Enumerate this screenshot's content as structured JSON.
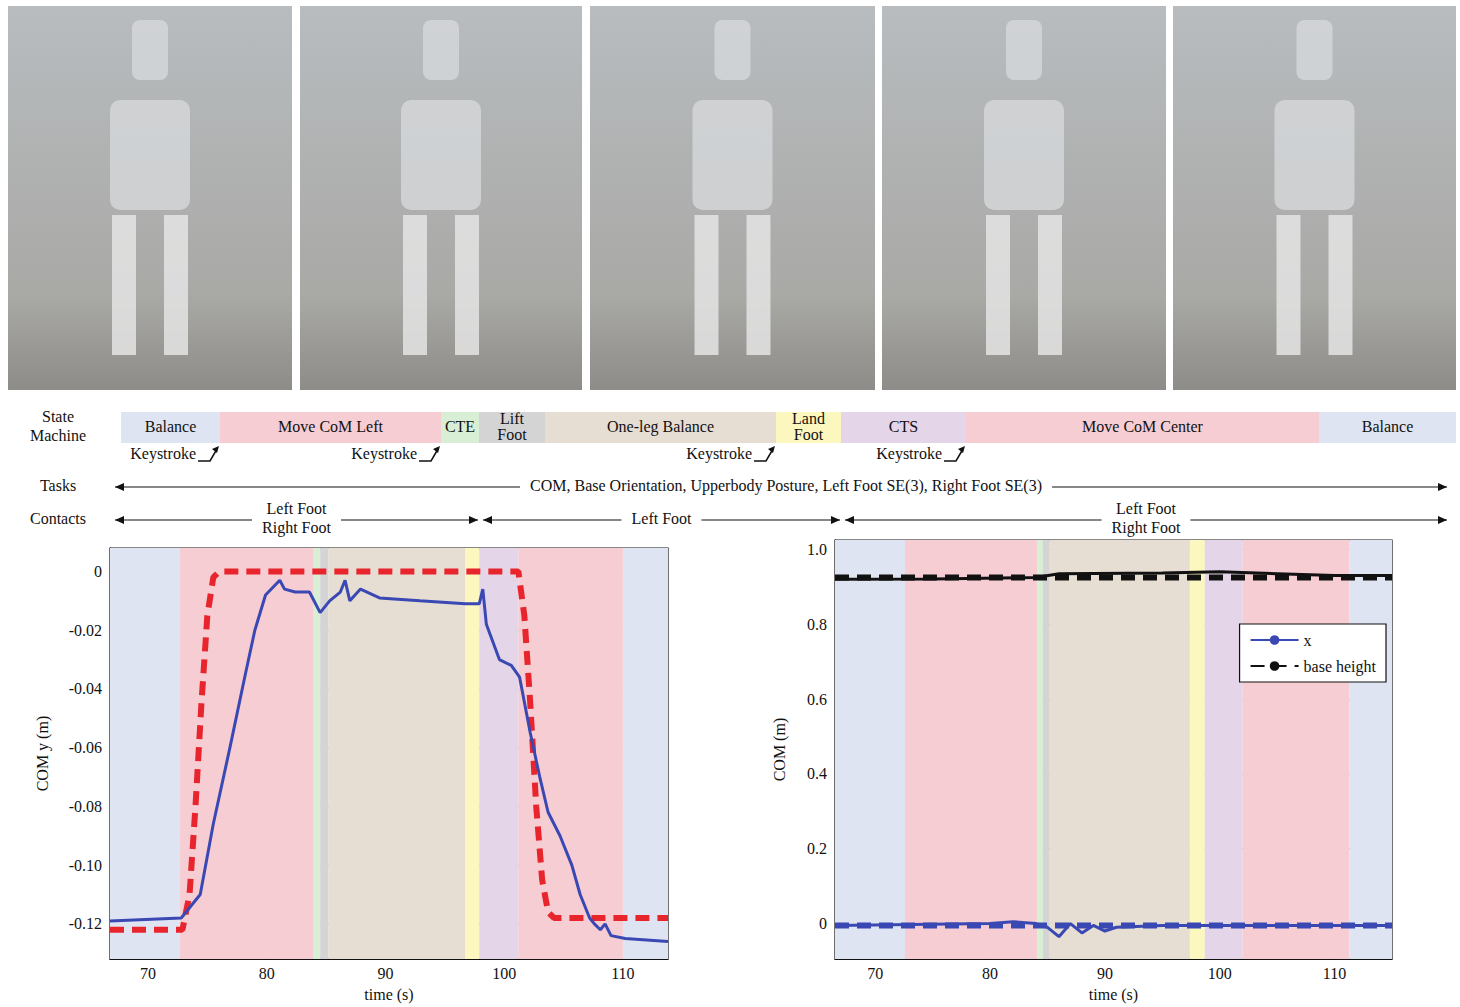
{
  "state_machine": {
    "label": "State Machine",
    "states": [
      {
        "label": "Balance",
        "color": "#dfe4f2"
      },
      {
        "label": "Move CoM Left",
        "color": "#f6cdd3"
      },
      {
        "label": "CTE",
        "color": "#d9efd5"
      },
      {
        "label": "Lift Foot",
        "color": "#d4d4d4"
      },
      {
        "label": "One-leg Balance",
        "color": "#e6ddd3"
      },
      {
        "label": "Land Foot",
        "color": "#fbf7bf"
      },
      {
        "label": "CTS",
        "color": "#e4d6e8"
      },
      {
        "label": "Move CoM Center",
        "color": "#f6cdd3"
      },
      {
        "label": "Balance",
        "color": "#dfe4f2"
      }
    ],
    "keystrokes": [
      "Keystroke",
      "Keystroke",
      "Keystroke",
      "Keystroke"
    ]
  },
  "tasks": {
    "label": "Tasks",
    "text": "COM, Base Orientation, Upperbody Posture, Left Foot SE(3), Right Foot SE(3)"
  },
  "contacts": {
    "label": "Contacts",
    "spans": [
      [
        "Left Foot",
        "Right Foot"
      ],
      [
        "Left Foot"
      ],
      [
        "Left Foot",
        "Right Foot"
      ]
    ]
  },
  "chart_data": [
    {
      "type": "line",
      "x_label": "time (s)",
      "y_label": "COM y (m)",
      "xlim": [
        66.8,
        113.8
      ],
      "xticks": [
        70,
        80,
        90,
        100,
        110
      ],
      "ylim": [
        -0.132,
        0.008
      ],
      "yticks": [
        -0.12,
        {
          "value": -0.1,
          "label": "-0.10"
        },
        -0.08,
        -0.06,
        -0.04,
        -0.02,
        0
      ],
      "grid": true,
      "phases": [
        {
          "start": 66.8,
          "end": 72.7,
          "color": "#dfe4f2"
        },
        {
          "start": 72.7,
          "end": 83.9,
          "color": "#f6cdd3"
        },
        {
          "start": 83.9,
          "end": 84.5,
          "color": "#d9efd5"
        },
        {
          "start": 84.5,
          "end": 85.2,
          "color": "#d4d4d4"
        },
        {
          "start": 85.2,
          "end": 96.7,
          "color": "#e6ddd3"
        },
        {
          "start": 96.7,
          "end": 97.9,
          "color": "#fbf7bf"
        },
        {
          "start": 97.9,
          "end": 101.2,
          "color": "#e4d6e8"
        },
        {
          "start": 101.2,
          "end": 110.0,
          "color": "#f6cdd3"
        },
        {
          "start": 110.0,
          "end": 113.8,
          "color": "#dfe4f2"
        }
      ],
      "series": [
        {
          "color": "#e8252d",
          "line_style": "dashed",
          "x": [
            66.8,
            72.9,
            73.5,
            74.0,
            74.5,
            75.0,
            75.5,
            76.0,
            101.2,
            101.7,
            102.2,
            102.7,
            103.2,
            103.7,
            104.2,
            113.8
          ],
          "values": [
            -0.122,
            -0.122,
            -0.11,
            -0.08,
            -0.045,
            -0.015,
            -0.002,
            0,
            0,
            -0.015,
            -0.045,
            -0.08,
            -0.105,
            -0.116,
            -0.118,
            -0.118
          ]
        },
        {
          "color": "#3a48b4",
          "line_style": "solid",
          "x": [
            66.8,
            72.8,
            74.4,
            75.5,
            76.9,
            78.2,
            79.0,
            79.9,
            81.1,
            81.5,
            82.4,
            83.6,
            84.5,
            85.3,
            86.2,
            86.6,
            87.0,
            87.9,
            89.5,
            92.9,
            96.7,
            97.9,
            98.2,
            98.5,
            99.6,
            100.6,
            101.3,
            102.2,
            103.0,
            103.7,
            104.7,
            105.7,
            106.4,
            107.2,
            107.6,
            108.1,
            108.5,
            109.0,
            110.2,
            113.8
          ],
          "values": [
            -0.119,
            -0.118,
            -0.11,
            -0.086,
            -0.06,
            -0.035,
            -0.02,
            -0.008,
            -0.003,
            -0.006,
            -0.007,
            -0.007,
            -0.014,
            -0.01,
            -0.007,
            -0.003,
            -0.01,
            -0.006,
            -0.009,
            -0.01,
            -0.011,
            -0.011,
            -0.006,
            -0.018,
            -0.03,
            -0.032,
            -0.036,
            -0.055,
            -0.07,
            -0.082,
            -0.09,
            -0.1,
            -0.11,
            -0.118,
            -0.12,
            -0.122,
            -0.12,
            -0.124,
            -0.125,
            -0.126
          ]
        }
      ]
    },
    {
      "type": "line",
      "x_label": "time (s)",
      "y_label": "COM (m)",
      "xlim": [
        66.5,
        115
      ],
      "xticks": [
        70,
        80,
        90,
        100,
        110
      ],
      "ylim": [
        -0.095,
        1.025
      ],
      "yticks": [
        0,
        0.2,
        0.4,
        0.6,
        0.8,
        {
          "value": 1,
          "label": "1.0"
        }
      ],
      "grid": true,
      "legend": "upper right",
      "phases": [
        {
          "start": 66.5,
          "end": 72.6,
          "color": "#dfe4f2"
        },
        {
          "start": 72.6,
          "end": 84.1,
          "color": "#f6cdd3"
        },
        {
          "start": 84.1,
          "end": 84.6,
          "color": "#d9efd5"
        },
        {
          "start": 84.6,
          "end": 85.2,
          "color": "#d4d4d4"
        },
        {
          "start": 85.2,
          "end": 97.4,
          "color": "#e6ddd3"
        },
        {
          "start": 97.4,
          "end": 98.7,
          "color": "#fbf7bf"
        },
        {
          "start": 98.7,
          "end": 102.0,
          "color": "#e4d6e8"
        },
        {
          "start": 102.0,
          "end": 111.3,
          "color": "#f6cdd3"
        },
        {
          "start": 111.3,
          "end": 115,
          "color": "#dfe4f2"
        }
      ],
      "series": [
        {
          "color": "#3a48b4",
          "line_style": "dashed",
          "x": [
            66.5,
            115
          ],
          "values": [
            -0.005,
            -0.005
          ]
        },
        {
          "name": "x",
          "color": "#3a48b4",
          "line_style": "solid",
          "x": [
            66.5,
            80,
            82,
            84,
            85,
            86,
            87,
            88,
            89,
            90,
            91,
            95,
            115
          ],
          "values": [
            -0.005,
            0,
            0.005,
            0,
            -0.01,
            -0.035,
            0,
            -0.025,
            -0.005,
            -0.02,
            -0.01,
            -0.005,
            -0.005
          ]
        },
        {
          "name": "base height",
          "color": "#111111",
          "line_style": "dashed",
          "x": [
            66.5,
            115
          ],
          "values": [
            0.925,
            0.925
          ]
        },
        {
          "color": "#111111",
          "line_style": "solid",
          "x": [
            66.5,
            75,
            84,
            86,
            95,
            100,
            105,
            110,
            115
          ],
          "values": [
            0.92,
            0.921,
            0.925,
            0.935,
            0.937,
            0.94,
            0.935,
            0.93,
            0.93
          ]
        }
      ]
    }
  ]
}
